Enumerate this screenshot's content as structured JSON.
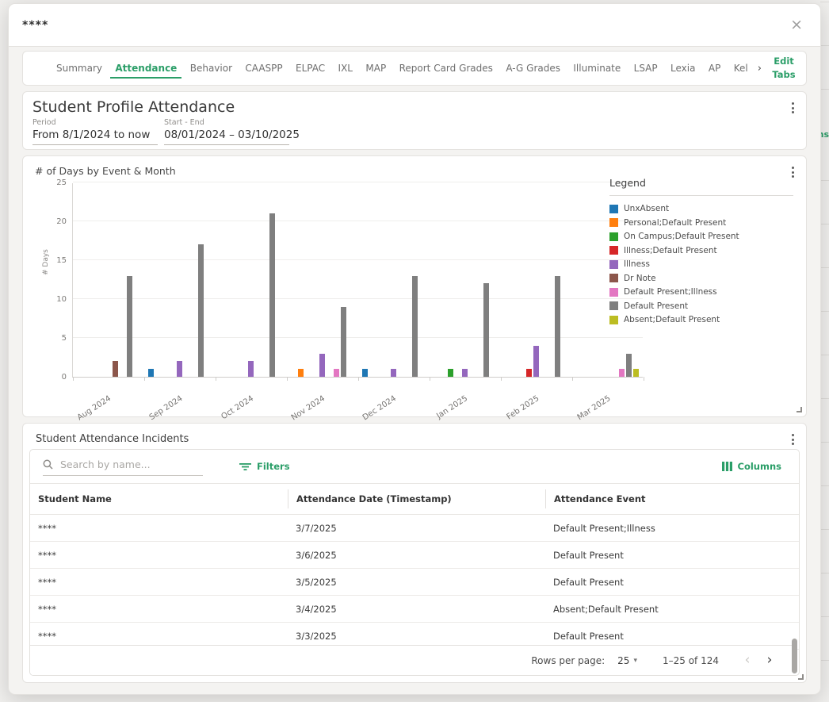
{
  "colors": {
    "accent": "#2b9e68",
    "bar_gray": "#7f7f7f"
  },
  "background": {
    "fragment_text": "ns"
  },
  "modal": {
    "title": "****",
    "close_icon": "×"
  },
  "tabs": {
    "items": [
      "Summary",
      "Attendance",
      "Behavior",
      "CAASPP",
      "ELPAC",
      "IXL",
      "MAP",
      "Report Card Grades",
      "A-G Grades",
      "Illuminate",
      "LSAP",
      "Lexia",
      "AP",
      "Kel"
    ],
    "active": "Attendance",
    "overflow_chevron": "›",
    "edit_tabs_label": "Edit Tabs"
  },
  "profile": {
    "title": "Student Profile Attendance",
    "fields": [
      {
        "label": "Period",
        "value": "From 8/1/2024 to now"
      },
      {
        "label": "Start - End",
        "value": "08/01/2024 – 03/10/2025"
      }
    ]
  },
  "chart_card": {
    "title": "# of Days by Event & Month",
    "legend_title": "Legend"
  },
  "chart_data": {
    "type": "bar",
    "title": "# of Days by Event & Month",
    "categories": [
      "Aug 2024",
      "Sep 2024",
      "Oct 2024",
      "Nov 2024",
      "Dec 2024",
      "Jan 2025",
      "Feb 2025",
      "Mar 2025"
    ],
    "series": [
      {
        "name": "UnxAbsent",
        "color": "#1f77b4",
        "values": [
          0,
          1,
          0,
          0,
          1,
          0,
          0,
          0
        ]
      },
      {
        "name": "Personal;Default Present",
        "color": "#ff7f0e",
        "values": [
          0,
          0,
          0,
          1,
          0,
          0,
          0,
          0
        ]
      },
      {
        "name": "On Campus;Default Present",
        "color": "#2ca02c",
        "values": [
          0,
          0,
          0,
          0,
          0,
          1,
          0,
          0
        ]
      },
      {
        "name": "Illness;Default Present",
        "color": "#d62728",
        "values": [
          0,
          0,
          0,
          0,
          0,
          0,
          1,
          0
        ]
      },
      {
        "name": "Illness",
        "color": "#9467bd",
        "values": [
          0,
          2,
          2,
          3,
          1,
          1,
          4,
          0
        ]
      },
      {
        "name": "Dr Note",
        "color": "#8c564b",
        "values": [
          2,
          0,
          0,
          0,
          0,
          0,
          0,
          0
        ]
      },
      {
        "name": "Default Present;Illness",
        "color": "#e377c2",
        "values": [
          0,
          0,
          0,
          1,
          0,
          0,
          0,
          1
        ]
      },
      {
        "name": "Default Present",
        "color": "#7f7f7f",
        "values": [
          13,
          17,
          21,
          9,
          13,
          12,
          13,
          3
        ]
      },
      {
        "name": "Absent;Default Present",
        "color": "#bcbd22",
        "values": [
          0,
          0,
          0,
          0,
          0,
          0,
          0,
          1
        ]
      }
    ],
    "xlabel": "",
    "ylabel": "# Days",
    "yticks": [
      0,
      5,
      10,
      15,
      20,
      25
    ],
    "ylim": [
      0,
      25
    ],
    "grid": true,
    "legend_position": "right"
  },
  "incidents": {
    "title": "Student Attendance Incidents",
    "search_placeholder": "Search by name...",
    "filters_label": "Filters",
    "columns_label": "Columns",
    "table": {
      "headers": [
        "Student Name",
        "Attendance Date (Timestamp)",
        "Attendance Event"
      ],
      "rows": [
        [
          "****",
          "3/7/2025",
          "Default Present;Illness"
        ],
        [
          "****",
          "3/6/2025",
          "Default Present"
        ],
        [
          "****",
          "3/5/2025",
          "Default Present"
        ],
        [
          "****",
          "3/4/2025",
          "Absent;Default Present"
        ],
        [
          "****",
          "3/3/2025",
          "Default Present"
        ]
      ]
    },
    "pagination": {
      "rows_per_page_label": "Rows per page:",
      "rows_per_page_value": "25",
      "dropdown_icon": "▾",
      "range_label": "1–25 of 124",
      "prev_icon": "‹",
      "next_icon": "›"
    }
  }
}
